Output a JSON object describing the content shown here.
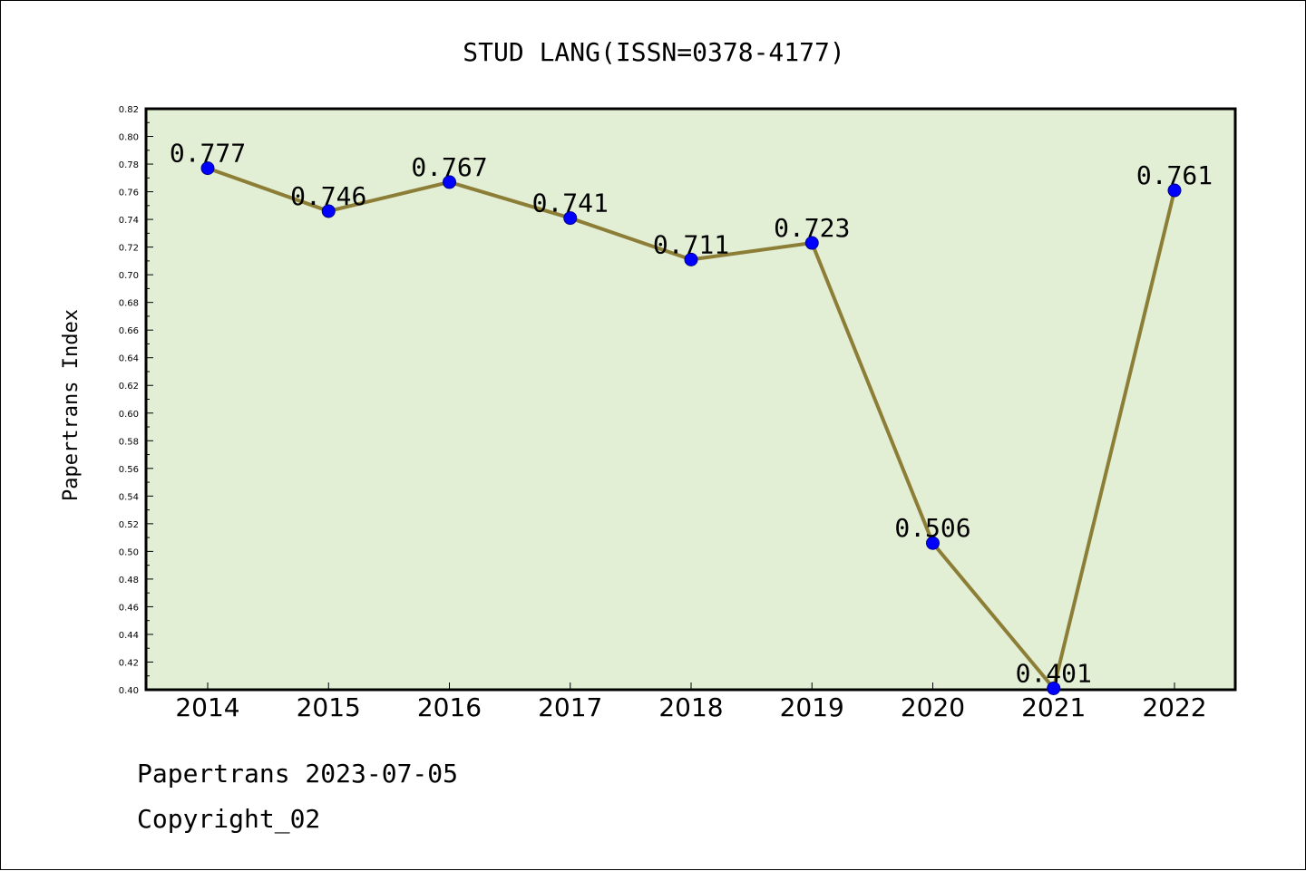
{
  "chart_data": {
    "type": "line",
    "title": "STUD LANG(ISSN=0378-4177)",
    "ylabel": "Papertrans Index",
    "xlabel": "",
    "categories": [
      "2014",
      "2015",
      "2016",
      "2017",
      "2018",
      "2019",
      "2020",
      "2021",
      "2022"
    ],
    "series": [
      {
        "values": [
          0.777,
          0.746,
          0.767,
          0.741,
          0.711,
          0.723,
          0.506,
          0.401,
          0.761
        ],
        "labels": [
          "0.777",
          "0.746",
          "0.767",
          "0.741",
          "0.711",
          "0.723",
          "0.506",
          "0.401",
          "0.761"
        ]
      }
    ],
    "ylim": [
      0.4,
      0.82
    ],
    "yticks": [
      "0.40",
      "0.42",
      "0.44",
      "0.46",
      "0.48",
      "0.50",
      "0.52",
      "0.54",
      "0.56",
      "0.58",
      "0.60",
      "0.62",
      "0.64",
      "0.66",
      "0.68",
      "0.70",
      "0.72",
      "0.74",
      "0.76",
      "0.78",
      "0.80",
      "0.82"
    ],
    "grid": false,
    "colors": {
      "plot_bg": "#e2efd5",
      "line": "#8c7e36",
      "marker": "#0000ff"
    }
  },
  "footer": {
    "line1": "Papertrans 2023-07-05",
    "line2": "Copyright_02"
  }
}
